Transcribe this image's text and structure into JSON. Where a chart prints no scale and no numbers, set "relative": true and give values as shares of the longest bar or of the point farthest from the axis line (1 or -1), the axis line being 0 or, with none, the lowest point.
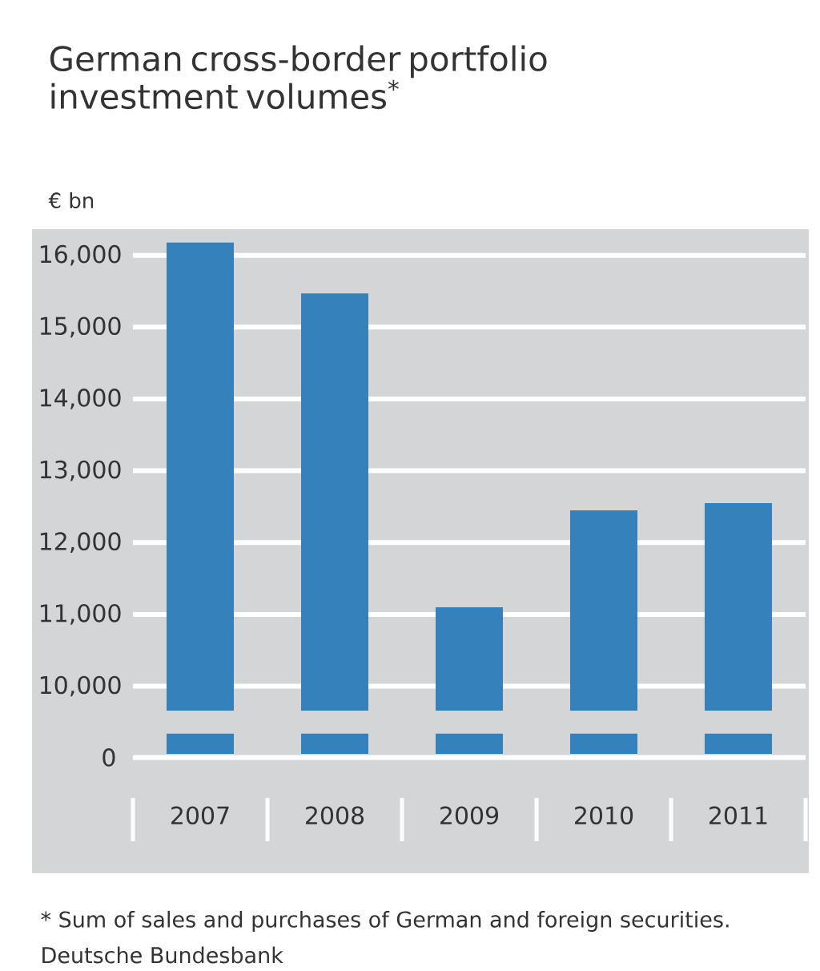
{
  "chart_data": [
    {
      "type": "bar",
      "title": "German cross-border portfolio investment volumes$^{*}$",
      "ylabel": "€ bn",
      "categories": [
        "2007",
        "2008",
        "2009",
        "2010",
        "2011"
      ],
      "values": [
        16180,
        15470,
        11100,
        12450,
        12550
      ],
      "color": "#3481bb",
      "ylim": [
        9660,
        16320
      ],
      "yticks": [
        {
          "value": 10000,
          "label": "10,000"
        },
        {
          "value": 11000,
          "label": "11,000"
        },
        {
          "value": 12000,
          "label": "12,000"
        },
        {
          "value": 13000,
          "label": "13,000"
        },
        {
          "value": 14000,
          "label": "14,000"
        },
        {
          "value": 15000,
          "label": "15,000"
        },
        {
          "value": 16000,
          "label": "16,000"
        }
      ],
      "grid": "y",
      "tick_labels": "y",
      "annotations": [
        "* Sum of sales and purchases of German and foreign securities.",
        "Deutsche Bundesbank"
      ]
    },
    {
      "type": "bar",
      "relative": true,
      "categories": [
        "2007",
        "2008",
        "2009",
        "2010",
        "2011"
      ],
      "values": [
        1,
        1,
        1,
        1,
        1
      ],
      "color": "#3481bb",
      "annotations": [
        "0"
      ]
    }
  ]
}
